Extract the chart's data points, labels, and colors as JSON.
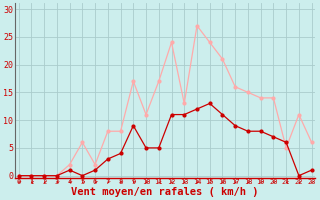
{
  "x": [
    0,
    1,
    2,
    3,
    4,
    5,
    6,
    7,
    8,
    9,
    10,
    11,
    12,
    13,
    14,
    15,
    16,
    17,
    18,
    19,
    20,
    21,
    22,
    23
  ],
  "wind_avg": [
    0,
    0,
    0,
    0,
    1,
    0,
    1,
    3,
    4,
    9,
    5,
    5,
    11,
    11,
    12,
    13,
    11,
    9,
    8,
    8,
    7,
    6,
    0,
    1
  ],
  "wind_gust": [
    0,
    0,
    0,
    0,
    2,
    6,
    2,
    8,
    8,
    17,
    11,
    17,
    24,
    13,
    27,
    24,
    21,
    16,
    15,
    14,
    14,
    5,
    11,
    6
  ],
  "avg_color": "#cc0000",
  "gust_color": "#ffaaaa",
  "bg_color": "#cceeed",
  "grid_color": "#aacccc",
  "xlabel": "Vent moyen/en rafales ( km/h )",
  "xlabel_color": "#cc0000",
  "yticks": [
    0,
    5,
    10,
    15,
    20,
    25,
    30
  ],
  "ylim": [
    -0.5,
    31
  ],
  "xlim": [
    -0.3,
    23.3
  ],
  "tick_color": "#cc0000",
  "spine_left_color": "#666666",
  "spine_bottom_color": "#cc0000",
  "marker_size": 2.0,
  "linewidth": 0.9,
  "xlabel_fontsize": 7.5,
  "tick_fontsize_x": 5,
  "tick_fontsize_y": 6
}
